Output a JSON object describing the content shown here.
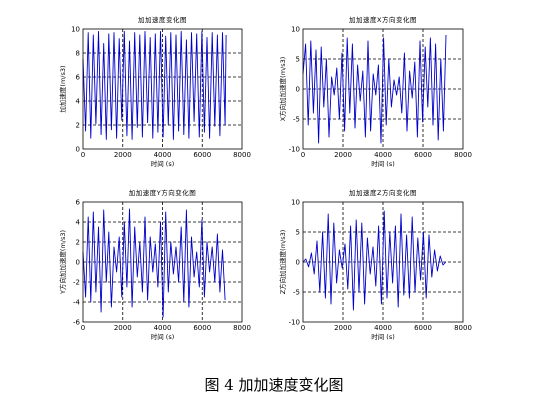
{
  "figure": {
    "caption": "图 4  加加速度变化图"
  },
  "chart_data": [
    {
      "type": "line",
      "title": "加加速度变化图",
      "xlabel": "时间 (s)",
      "ylabel": "加加速度(m/s3)",
      "xlim": [
        0,
        8000
      ],
      "ylim": [
        0,
        10
      ],
      "xticks": [
        0,
        2000,
        4000,
        6000,
        8000
      ],
      "yticks": [
        0,
        2,
        4,
        6,
        8,
        10
      ],
      "grid": "dashed",
      "series": [
        {
          "color": "#0000cc",
          "x": [
            0,
            130,
            260,
            390,
            520,
            650,
            780,
            910,
            1040,
            1170,
            1300,
            1430,
            1560,
            1690,
            1820,
            1950,
            2080,
            2210,
            2340,
            2470,
            2600,
            2730,
            2860,
            2990,
            3120,
            3250,
            3380,
            3510,
            3640,
            3770,
            3900,
            4030,
            4160,
            4290,
            4420,
            4550,
            4680,
            4810,
            4940,
            5070,
            5200,
            5330,
            5460,
            5590,
            5720,
            5850,
            5980,
            6110,
            6240,
            6370,
            6500,
            6630,
            6760,
            6890,
            7020,
            7150,
            7200
          ],
          "y": [
            7.5,
            1.5,
            9.7,
            0.9,
            9.5,
            2.1,
            9.8,
            1.2,
            8.8,
            0.8,
            9.6,
            1.6,
            9.7,
            0.9,
            9.2,
            2.4,
            9.8,
            1.1,
            9.0,
            0.8,
            9.7,
            1.8,
            9.5,
            1.0,
            9.8,
            2.2,
            9.3,
            0.9,
            9.6,
            1.4,
            9.8,
            1.0,
            9.4,
            2.0,
            9.7,
            0.8,
            9.5,
            1.5,
            9.8,
            1.2,
            9.1,
            0.9,
            9.7,
            2.3,
            9.6,
            1.0,
            9.8,
            1.4,
            9.3,
            0.9,
            9.7,
            1.9,
            9.5,
            1.1,
            9.7,
            2.0,
            9.5
          ]
        }
      ]
    },
    {
      "type": "line",
      "title": "加加速度X方向变化图",
      "xlabel": "时间 (s)",
      "ylabel": "X方向加加速度(m/s3)",
      "xlim": [
        0,
        8000
      ],
      "ylim": [
        -10,
        10
      ],
      "xticks": [
        0,
        2000,
        4000,
        6000,
        8000
      ],
      "yticks": [
        -10,
        -5,
        0,
        5,
        10
      ],
      "grid": "dashed",
      "series": [
        {
          "color": "#0000cc",
          "x": [
            0,
            130,
            260,
            390,
            520,
            650,
            780,
            910,
            1040,
            1170,
            1300,
            1430,
            1560,
            1690,
            1820,
            1950,
            2080,
            2210,
            2340,
            2470,
            2600,
            2730,
            2860,
            2990,
            3120,
            3250,
            3380,
            3510,
            3640,
            3770,
            3900,
            4030,
            4160,
            4290,
            4420,
            4550,
            4680,
            4810,
            4940,
            5070,
            5200,
            5330,
            5460,
            5590,
            5720,
            5850,
            5980,
            6110,
            6240,
            6370,
            6500,
            6630,
            6760,
            6890,
            7020,
            7150
          ],
          "y": [
            2.5,
            7.5,
            -6,
            8,
            -4,
            6.5,
            -9,
            7,
            -3,
            5,
            -8,
            2,
            -1,
            3.5,
            -5,
            6,
            -7,
            8.5,
            -4,
            7.5,
            -6.5,
            4,
            -2,
            3,
            -8,
            8,
            -7,
            2.5,
            -1,
            4,
            -9,
            8.5,
            -6,
            5,
            -3,
            1.5,
            -1,
            2,
            -4,
            6,
            -7,
            3,
            -1.5,
            4.5,
            -8,
            8,
            -5.5,
            7,
            -3,
            8.5,
            -6,
            7.5,
            -8.5,
            5,
            -7,
            9
          ]
        }
      ]
    },
    {
      "type": "line",
      "title": "加加速度Y方向变化图",
      "xlabel": "时间 (s)",
      "ylabel": "Y方向加加速度(m/s3)",
      "xlim": [
        0,
        8000
      ],
      "ylim": [
        -6,
        6
      ],
      "xticks": [
        0,
        2000,
        4000,
        6000,
        8000
      ],
      "yticks": [
        -6,
        -4,
        -2,
        0,
        2,
        4,
        6
      ],
      "grid": "dashed",
      "series": [
        {
          "color": "#0000cc",
          "x": [
            0,
            130,
            260,
            390,
            520,
            650,
            780,
            910,
            1040,
            1170,
            1300,
            1430,
            1560,
            1690,
            1820,
            1950,
            2080,
            2210,
            2340,
            2470,
            2600,
            2730,
            2860,
            2990,
            3120,
            3250,
            3380,
            3510,
            3640,
            3770,
            3900,
            4030,
            4160,
            4290,
            4420,
            4550,
            4680,
            4810,
            4940,
            5070,
            5200,
            5330,
            5460,
            5590,
            5720,
            5850,
            5980,
            6110,
            6240,
            6370,
            6500,
            6630,
            6760,
            6890,
            7020,
            7150
          ],
          "y": [
            1,
            -3.5,
            4.5,
            -4,
            5,
            -3,
            3.5,
            -5,
            5.2,
            -2,
            3,
            -4.5,
            1.5,
            -1,
            2.5,
            -3.5,
            4,
            -2.5,
            5.3,
            -4.5,
            3.5,
            -1.5,
            2,
            -3,
            4.5,
            -3.8,
            2.5,
            -1,
            1.8,
            -2.5,
            4,
            -5.5,
            5,
            -3,
            2,
            -1.2,
            1.5,
            -2,
            3.5,
            -4,
            5.2,
            -4.5,
            2.5,
            -1.5,
            1,
            -2.5,
            4.2,
            -3.5,
            2,
            -1,
            1.5,
            -2,
            2.8,
            -3,
            1.2,
            -3.8
          ]
        }
      ]
    },
    {
      "type": "line",
      "title": "加加速度Z方向变化图",
      "xlabel": "时间 (s)",
      "ylabel": "Z方向加加速度(m/s3)",
      "xlim": [
        0,
        8000
      ],
      "ylim": [
        -10,
        10
      ],
      "xticks": [
        0,
        2000,
        4000,
        6000,
        8000
      ],
      "yticks": [
        -10,
        -5,
        0,
        5,
        10
      ],
      "grid": "dashed",
      "series": [
        {
          "color": "#0000cc",
          "x": [
            0,
            140,
            280,
            420,
            560,
            700,
            840,
            980,
            1120,
            1260,
            1400,
            1540,
            1680,
            1820,
            1960,
            2100,
            2240,
            2380,
            2520,
            2660,
            2800,
            2940,
            3080,
            3220,
            3360,
            3500,
            3640,
            3780,
            3920,
            4060,
            4200,
            4340,
            4480,
            4620,
            4760,
            4900,
            5040,
            5180,
            5320,
            5460,
            5600,
            5740,
            5880,
            6020,
            6160,
            6300,
            6440,
            6580,
            6720,
            6860,
            7000,
            7140
          ],
          "y": [
            0,
            0.5,
            -0.8,
            1.5,
            -2,
            3.5,
            -5,
            5,
            -6,
            8,
            -7,
            6.5,
            -3.5,
            2,
            -1,
            3,
            -4.5,
            6,
            -8,
            7,
            -5,
            6.5,
            -7,
            4,
            -2,
            2.5,
            -4,
            6,
            -7,
            8.5,
            -6,
            5,
            -3.5,
            6,
            -7.5,
            8,
            -5.5,
            4.5,
            -6,
            7.5,
            -5,
            4,
            -3,
            5,
            -6,
            4.5,
            -2.5,
            2,
            -1.5,
            1,
            -0.5,
            0
          ]
        }
      ]
    }
  ]
}
